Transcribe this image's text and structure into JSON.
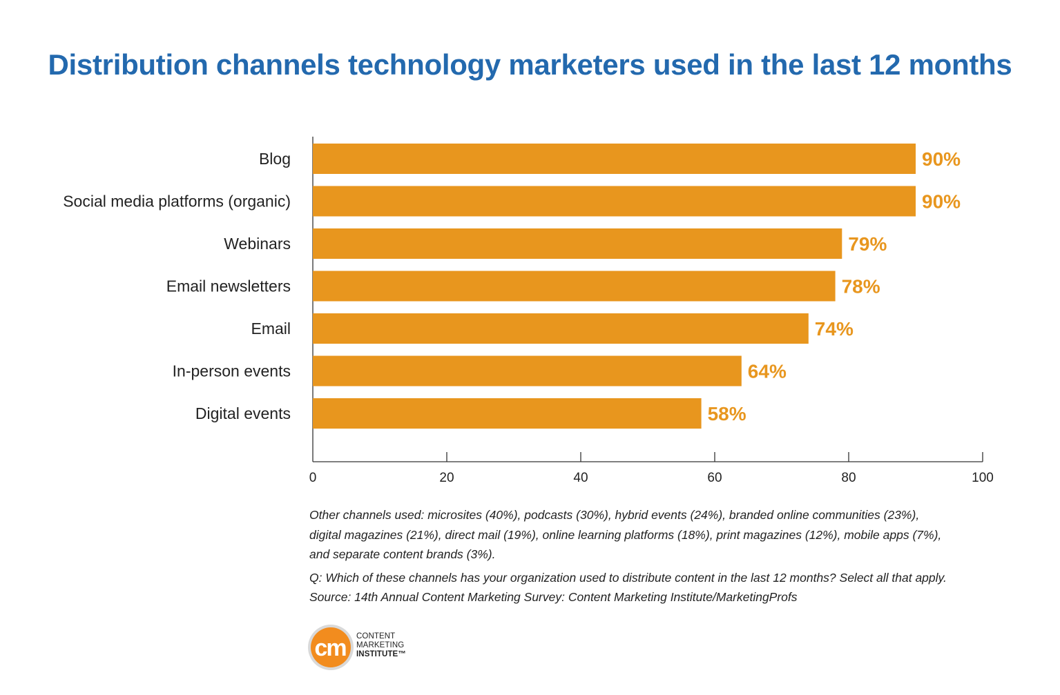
{
  "chart_data": {
    "type": "bar",
    "orientation": "horizontal",
    "title": "Distribution channels technology marketers used in the last 12 months",
    "categories": [
      "Blog",
      "Social media platforms (organic)",
      "Webinars",
      "Email newsletters",
      "Email",
      "In-person events",
      "Digital events"
    ],
    "values": [
      90,
      90,
      79,
      78,
      74,
      64,
      58
    ],
    "value_labels": [
      "90%",
      "90%",
      "79%",
      "78%",
      "74%",
      "64%",
      "58%"
    ],
    "xlim": [
      0,
      100
    ],
    "x_ticks": [
      "0",
      "20",
      "40",
      "60",
      "80",
      "100"
    ],
    "xlabel": "",
    "ylabel": "",
    "grid": false,
    "legend": "none",
    "bar_color": "#e8961e",
    "label_color": "#e8961e"
  },
  "colors": {
    "title": "#2369ae",
    "bar": "#e8961e",
    "axis": "#333333",
    "text": "#222222"
  },
  "notes": {
    "other_channels": [
      "Other channels used: microsites (40%), podcasts (30%), hybrid events (24%), branded online communities (23%),",
      "digital magazines (21%), direct mail (19%), online learning platforms (18%), print magazines (12%), mobile apps (7%),",
      "and separate content brands (3%)."
    ],
    "question": "Q: Which of these channels has your organization used to distribute content in the last 12 months? Select all that apply.",
    "source": "Source: 14th Annual Content Marketing Survey: Content Marketing Institute/MarketingProfs"
  },
  "logo": {
    "mark": "cm",
    "line1": "CONTENT",
    "line2": "MARKETING",
    "line3": "INSTITUTE™",
    "icon": "content-marketing-institute-logo-icon"
  }
}
